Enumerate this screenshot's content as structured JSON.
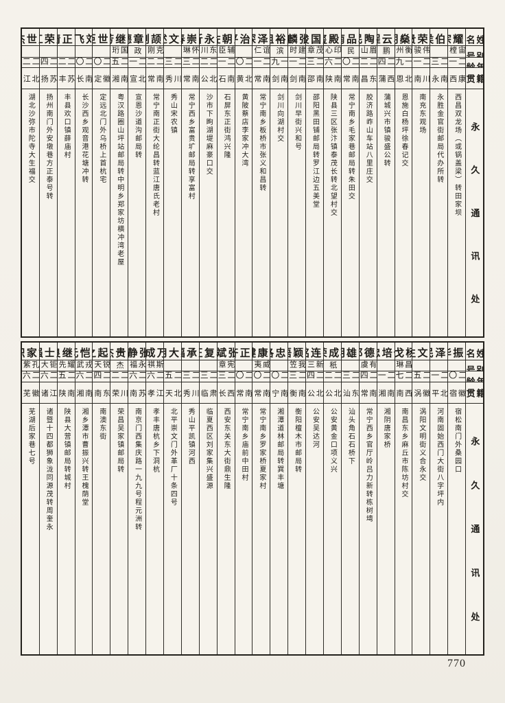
{
  "page": {
    "number": "770"
  },
  "column_headers": {
    "name": "姓名",
    "alias": "别号",
    "age": "年龄",
    "origin": "籍贯",
    "address": "永久通讯处"
  },
  "tables": [
    {
      "people": [
        {
          "name": "杨耀宗",
          "alias": "宙樘",
          "age": "二一",
          "origin": "西康西昌",
          "address": "西昌双龙场（或锅盖梁）转田家坝"
        },
        {
          "name": "黄伯侯",
          "alias": "",
          "age": "二三",
          "origin": "云南永胜",
          "address": "永胜金官街邮局代办所转"
        },
        {
          "name": "梁荣贵",
          "alias": "伟骏",
          "age": "二一",
          "origin": "四川南充",
          "address": "南充东观场"
        },
        {
          "name": "徐燊期",
          "alias": "衡州",
          "age": "一九",
          "origin": "湖北恩施",
          "address": "恩施白杨坪徐春记交"
        },
        {
          "name": "蒋云程",
          "alias": "鹏",
          "age": "二四",
          "origin": "陕西蒲城",
          "address": "蒲城兴市镇骏盛公转"
        },
        {
          "name": "孙陶民",
          "alias": "眉山",
          "age": "二二",
          "origin": "山东昌邑",
          "address": "胶济路岞山车站八里庄交"
        },
        {
          "name": "段品南",
          "alias": "民",
          "age": "二〇",
          "origin": "湖南常宁",
          "address": "常宁南乡毛家巷邮局转朱田交"
        },
        {
          "name": "王殿玺",
          "alias": "印心",
          "age": "二六",
          "origin": "河南陕县",
          "address": "陕县三区张汴镇泰茂长转北望村交"
        },
        {
          "name": "唐国俊",
          "alias": "茂章",
          "age": "二三",
          "origin": "湖南邵阳",
          "address": "邵阳黑田铺邮局转罗江边五美堂"
        },
        {
          "name": "张麟",
          "alias": "建时",
          "age": "二一",
          "origin": "云南剑川",
          "address": "剑川早街兴和号"
        },
        {
          "name": "赵裕祖",
          "alias": "滨",
          "age": "一九",
          "origin": "云南剑川",
          "address": "剑川向湖村交"
        },
        {
          "name": "张泽深",
          "alias": "谊仁",
          "age": "二一",
          "origin": "湖南常宁",
          "address": "常宁南乡板桥市张义和昌转"
        },
        {
          "name": "李治平",
          "alias": "",
          "age": "二〇",
          "origin": "湖北黄陂",
          "address": "黄陂蔡店李家冲大湾"
        },
        {
          "name": "王朝佐",
          "alias": "辅臣",
          "age": "二一",
          "origin": "云南石屏",
          "address": "石屏东正街鸿兴隆"
        },
        {
          "name": "邹永沂",
          "alias": "东川",
          "age": "二二",
          "origin": "湖北公安",
          "address": "沙市下眗湖堤麻豪口交"
        },
        {
          "name": "罗崇春",
          "alias": "怀琳",
          "age": "二三",
          "origin": "湖南常宁",
          "address": "常宁西乡富贵圹邮局转享富村"
        },
        {
          "name": "袁文述",
          "alias": "",
          "age": "二三",
          "origin": "四川秀山",
          "address": "秀山宋农镇"
        },
        {
          "name": "唐颉刚",
          "alias": "克刚",
          "age": "二二",
          "origin": "湖南常宁",
          "address": "常宁南正街大纶昌转蓝江唐氏老村"
        },
        {
          "name": "覃章德",
          "alias": "政",
          "age": "二一",
          "origin": "湖北宣恩",
          "address": "宣恩沙道沟邮局转"
        },
        {
          "name": "陈继芳",
          "alias": "国珩",
          "age": "二五",
          "origin": "湖南湘阴",
          "address": "粤汉路圈山坪站邮局转中明乡郑家坊横冲湾老屋"
        },
        {
          "name": "杭世臣",
          "alias": "",
          "age": "二〇",
          "origin": "安徽定远",
          "address": "定远北门外乌桥上首杭宅"
        },
        {
          "name": "刘飞",
          "alias": "",
          "age": "二〇",
          "origin": "湖南长沙",
          "address": "长沙西乡观音港花塘冲转"
        },
        {
          "name": "薛正清",
          "alias": "",
          "age": "二二",
          "origin": "江苏丰县",
          "address": "丰县欢口镇薛庙村"
        },
        {
          "name": "王荣江",
          "alias": "",
          "age": "二四",
          "origin": "江苏扬州",
          "address": "扬州南门外安墩巷方正泰号转"
        },
        {
          "name": "王世杰",
          "alias": "",
          "age": "二二",
          "origin": "湖北江陵",
          "address": "湖北沙弥市陀寺大生福交"
        }
      ]
    },
    {
      "people": [
        {
          "name": "尤振华",
          "alias": "",
          "age": "二〇",
          "origin": "安徽宿松",
          "address": "宿松南门外桑园口"
        },
        {
          "name": "荣泽民",
          "alias": "",
          "age": "二一",
          "origin": "北平",
          "address": "河南固始西门大街八字坪内"
        },
        {
          "name": "段文生",
          "alias": "",
          "age": "二五",
          "origin": "安徽涡阳",
          "address": "涡阳文明街义合永交"
        },
        {
          "name": "杨戈",
          "alias": "昌琳",
          "age": "二七",
          "origin": "江西南昌",
          "address": "南昌东乡麻丘市陈坊村交"
        },
        {
          "name": "任培忠",
          "alias": "",
          "age": "二一",
          "origin": "湖南湘阴",
          "address": "湘阴唐家桥"
        },
        {
          "name": "唐德邦",
          "alias": "有虞",
          "age": "二四",
          "origin": "湖南常宁",
          "address": "常宁西乡官厅岭吕力新转栋树塆"
        },
        {
          "name": "陈雄明",
          "alias": "",
          "age": "二三",
          "origin": "广东汕头",
          "address": "汕头角石石桥下"
        },
        {
          "name": "项成荣",
          "alias": "秖",
          "age": "二二",
          "origin": "湖北公安",
          "address": "公安黄金口项义兴"
        },
        {
          "name": "崔连铭",
          "alias": "新三",
          "age": "二四",
          "origin": "湖北公安",
          "address": "公安吴达河"
        },
        {
          "name": "戴颖悟",
          "alias": "我笠",
          "age": "二三",
          "origin": "湖南衡阳",
          "address": "衡阳檀木市邮局转"
        },
        {
          "name": "周忠洛",
          "alias": "",
          "age": "二〇",
          "origin": "湖南宁乡",
          "address": "湘潭道林邮局转巽丰塘"
        },
        {
          "name": "夏康健",
          "alias": "威夷",
          "age": "二〇",
          "origin": "湖南常宁",
          "address": "常宁南乡罗家桥夏家村"
        },
        {
          "name": "李正齐",
          "alias": "",
          "age": "二〇",
          "origin": "湖南常宁",
          "address": "常宁南乡庙前中田村"
        },
        {
          "name": "张斌",
          "alias": "宪章",
          "age": "二三",
          "origin": "陕西长安",
          "address": "西安东关东大街鼎生隆"
        },
        {
          "name": "马复正",
          "alias": "",
          "age": "二三",
          "origin": "甘肃临夏",
          "address": "临夏西区刘家集兴盛源"
        },
        {
          "name": "万承福",
          "alias": "",
          "age": "二三",
          "origin": "四川秀山",
          "address": "秀山平凯镇河西"
        },
        {
          "name": "吴大用",
          "alias": "",
          "age": "二五",
          "origin": "河北天津",
          "address": "北平崇文门外革厂十条四号"
        },
        {
          "name": "万成",
          "alias": "斯祺",
          "age": "二六",
          "origin": "浙江孝丰",
          "address": "孝丰唐杭乡下洞杭"
        },
        {
          "name": "张静",
          "alias": "永福",
          "age": "二六",
          "origin": "江苏南京",
          "address": "南京门西集庆路一九九号程元洲转"
        },
        {
          "name": "周贵杰",
          "alias": "杰",
          "age": "二二",
          "origin": "四川荣昌",
          "address": "荣昌吴家镇邮局转"
        },
        {
          "name": "吴起之",
          "alias": "锐天",
          "age": "二四",
          "origin": "广东南澳",
          "address": "南澳东街"
        },
        {
          "name": "王恺元",
          "alias": "戎武",
          "age": "二六",
          "origin": "湖南湘乡",
          "address": "湘乡潭市曹振兴转王槐荫堂"
        },
        {
          "name": "韩继良",
          "alias": "耀先",
          "age": "二五",
          "origin": "河南陕县",
          "address": "陕县大营镇邮局转城村"
        },
        {
          "name": "周士强",
          "alias": "钜大",
          "age": "二六",
          "origin": "浙江诸暨",
          "address": "诸暨十四都狮象泷同源茂转周奎永"
        },
        {
          "name": "胡家炽",
          "alias": "孔紫",
          "age": "二六",
          "origin": "安徽芜湖",
          "address": "芜湖后家巷七号"
        }
      ]
    }
  ]
}
